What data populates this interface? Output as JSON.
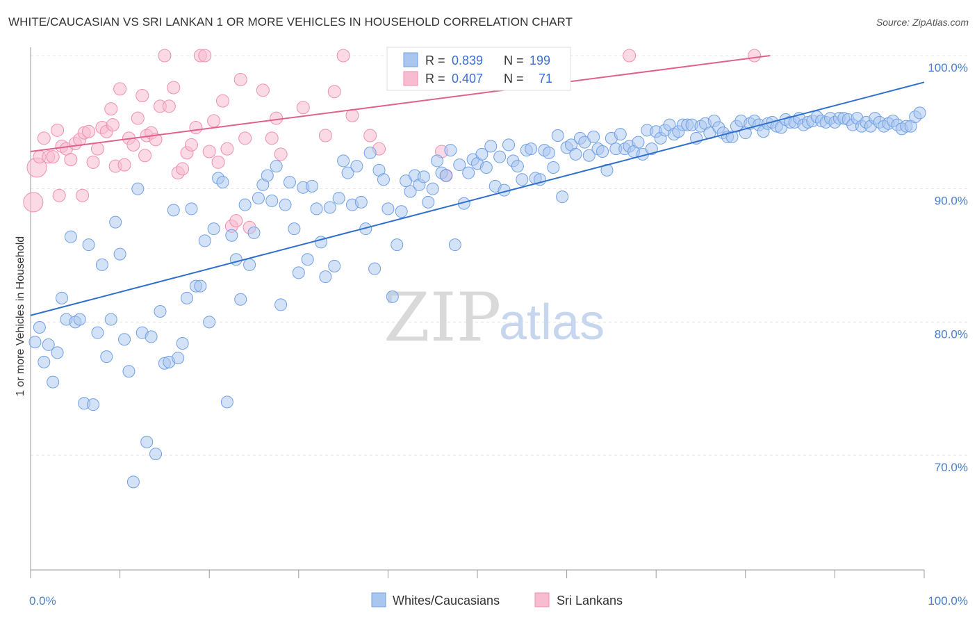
{
  "header": {
    "title": "WHITE/CAUCASIAN VS SRI LANKAN 1 OR MORE VEHICLES IN HOUSEHOLD CORRELATION CHART",
    "source": "Source: ZipAtlas.com"
  },
  "watermark": {
    "zip": "ZIP",
    "atlas": "atlas"
  },
  "legend": {
    "rows": [
      {
        "r_label": "R =",
        "r_value": "0.839",
        "n_label": "N =",
        "n_value": "199",
        "color": "#6fa0e6"
      },
      {
        "r_label": "R =",
        "r_value": "0.407",
        "n_label": "N =",
        "n_value": "71",
        "color": "#f08fb0"
      }
    ]
  },
  "bottom_legend": [
    {
      "label": "Whites/Caucasians",
      "color": "#6fa0e6"
    },
    {
      "label": "Sri Lankans",
      "color": "#f08fb0"
    }
  ],
  "chart_data": {
    "type": "scatter",
    "title": "WHITE/CAUCASIAN VS SRI LANKAN 1 OR MORE VEHICLES IN HOUSEHOLD CORRELATION CHART",
    "xlabel": "",
    "ylabel": "1 or more Vehicles in Household",
    "xlim": [
      0,
      100
    ],
    "ylim": [
      60,
      101
    ],
    "x_tick_labels": [
      "0.0%",
      "100.0%"
    ],
    "y_ticks": [
      70,
      80,
      90,
      100
    ],
    "y_tick_labels": [
      "70.0%",
      "80.0%",
      "90.0%",
      "100.0%"
    ],
    "grid": true,
    "legend_position": "top-center",
    "colors": {
      "blue_fill": "#a9c6ef",
      "blue_stroke": "#6fa0e6",
      "blue_line": "#2f6fcc",
      "pink_fill": "#f7bcd0",
      "pink_stroke": "#f08fb0",
      "pink_line": "#e0608e"
    },
    "series": [
      {
        "name": "Whites/Caucasians",
        "trend": {
          "x": [
            0,
            100
          ],
          "y": [
            80.5,
            98.0
          ]
        },
        "points": [
          [
            0.5,
            78.5
          ],
          [
            1,
            79.6
          ],
          [
            1.5,
            77
          ],
          [
            2,
            78.3
          ],
          [
            2.5,
            75.5
          ],
          [
            3,
            77.7
          ],
          [
            3.5,
            81.8
          ],
          [
            4,
            80.2
          ],
          [
            4.5,
            86.4
          ],
          [
            5,
            80
          ],
          [
            5.5,
            80.2
          ],
          [
            6,
            73.9
          ],
          [
            6.5,
            85.8
          ],
          [
            7,
            73.8
          ],
          [
            7.5,
            79.2
          ],
          [
            8,
            84.3
          ],
          [
            8.5,
            77.4
          ],
          [
            9,
            80.2
          ],
          [
            9.5,
            87.5
          ],
          [
            10,
            85.1
          ],
          [
            10.5,
            78.7
          ],
          [
            11,
            76.3
          ],
          [
            11.5,
            68
          ],
          [
            12,
            90
          ],
          [
            12.5,
            79.2
          ],
          [
            13,
            71
          ],
          [
            13.5,
            78.9
          ],
          [
            14,
            70.1
          ],
          [
            14.5,
            80.8
          ],
          [
            15,
            76.9
          ],
          [
            15.5,
            77
          ],
          [
            16,
            88.4
          ],
          [
            16.5,
            77.3
          ],
          [
            17,
            78.4
          ],
          [
            17.5,
            81.8
          ],
          [
            18,
            88.5
          ],
          [
            18.5,
            82.7
          ],
          [
            19,
            82.7
          ],
          [
            19.5,
            86.1
          ],
          [
            20,
            80
          ],
          [
            20.5,
            87
          ],
          [
            21,
            90.8
          ],
          [
            21.5,
            90.5
          ],
          [
            22,
            74
          ],
          [
            22.5,
            86.5
          ],
          [
            23,
            84.7
          ],
          [
            23.5,
            81.7
          ],
          [
            24,
            88.8
          ],
          [
            24.5,
            84.3
          ],
          [
            25,
            86.7
          ],
          [
            25.5,
            89.3
          ],
          [
            26,
            90.3
          ],
          [
            26.5,
            91
          ],
          [
            27,
            89.1
          ],
          [
            27.5,
            91.7
          ],
          [
            28,
            81.3
          ],
          [
            28.5,
            88.8
          ],
          [
            29,
            90.5
          ],
          [
            29.5,
            87
          ],
          [
            30,
            83.7
          ],
          [
            30.5,
            90.1
          ],
          [
            31,
            84.7
          ],
          [
            31.5,
            90.2
          ],
          [
            32,
            88.5
          ],
          [
            32.5,
            86
          ],
          [
            33,
            83.4
          ],
          [
            33.5,
            88.6
          ],
          [
            34,
            84.2
          ],
          [
            34.5,
            89.3
          ],
          [
            35,
            92.1
          ],
          [
            35.5,
            91.2
          ],
          [
            36,
            88.8
          ],
          [
            36.5,
            91.7
          ],
          [
            37,
            89
          ],
          [
            37.5,
            87
          ],
          [
            38,
            92.7
          ],
          [
            38.5,
            84
          ],
          [
            39,
            91.4
          ],
          [
            39.5,
            90.7
          ],
          [
            40,
            88.5
          ],
          [
            40.5,
            81.9
          ],
          [
            41,
            85.8
          ],
          [
            41.5,
            88.3
          ],
          [
            42,
            90.6
          ],
          [
            42.5,
            89.8
          ],
          [
            43,
            91
          ],
          [
            43.5,
            90.3
          ],
          [
            44,
            90.9
          ],
          [
            44.5,
            89
          ],
          [
            45,
            90
          ],
          [
            45.5,
            92.1
          ],
          [
            46,
            91.2
          ],
          [
            46.5,
            91
          ],
          [
            47,
            92.9
          ],
          [
            47.5,
            85.8
          ],
          [
            48,
            91.8
          ],
          [
            48.5,
            88.9
          ],
          [
            49,
            91.2
          ],
          [
            49.5,
            92.2
          ],
          [
            50,
            91.9
          ],
          [
            50.5,
            92.6
          ],
          [
            51,
            91.6
          ],
          [
            51.5,
            93.2
          ],
          [
            52,
            90.2
          ],
          [
            52.5,
            92.4
          ],
          [
            53,
            89.9
          ],
          [
            53.5,
            93.3
          ],
          [
            54,
            92.1
          ],
          [
            54.5,
            91.7
          ],
          [
            55,
            90.7
          ],
          [
            55.5,
            92.9
          ],
          [
            56,
            93
          ],
          [
            56.5,
            90.8
          ],
          [
            57,
            90.7
          ],
          [
            57.5,
            92.9
          ],
          [
            58,
            92.7
          ],
          [
            58.5,
            91.6
          ],
          [
            59,
            94
          ],
          [
            59.5,
            89.4
          ],
          [
            60,
            93.1
          ],
          [
            60.5,
            93.3
          ],
          [
            61,
            92.6
          ],
          [
            61.5,
            93.8
          ],
          [
            62,
            93.5
          ],
          [
            62.5,
            92.5
          ],
          [
            63,
            93.9
          ],
          [
            63.5,
            93.0
          ],
          [
            64,
            92.8
          ],
          [
            64.5,
            91.4
          ],
          [
            65,
            93.8
          ],
          [
            65.5,
            93
          ],
          [
            66,
            94.1
          ],
          [
            66.5,
            93
          ],
          [
            67,
            93.2
          ],
          [
            67.5,
            92.8
          ],
          [
            68,
            93.5
          ],
          [
            68.5,
            92.6
          ],
          [
            69,
            94.4
          ],
          [
            69.5,
            93
          ],
          [
            70,
            94.3
          ],
          [
            70.5,
            93.8
          ],
          [
            71,
            94.4
          ],
          [
            71.5,
            94.8
          ],
          [
            72,
            94.1
          ],
          [
            72.5,
            94.3
          ],
          [
            73,
            94.8
          ],
          [
            73.5,
            94.8
          ],
          [
            74,
            94.8
          ],
          [
            74.5,
            93.8
          ],
          [
            75,
            94.7
          ],
          [
            75.5,
            94.9
          ],
          [
            76,
            94.2
          ],
          [
            76.5,
            95.1
          ],
          [
            77,
            94.6
          ],
          [
            77.5,
            94.2
          ],
          [
            78,
            93.9
          ],
          [
            78.5,
            93.9
          ],
          [
            79,
            94.7
          ],
          [
            79.5,
            95.1
          ],
          [
            80,
            94.2
          ],
          [
            80.5,
            94.9
          ],
          [
            81,
            95.1
          ],
          [
            81.5,
            94.8
          ],
          [
            82,
            94.3
          ],
          [
            82.5,
            94.9
          ],
          [
            83,
            95
          ],
          [
            83.5,
            94.7
          ],
          [
            84,
            94.6
          ],
          [
            84.5,
            95.2
          ],
          [
            85,
            95
          ],
          [
            85.5,
            95
          ],
          [
            86,
            95.3
          ],
          [
            86.5,
            94.8
          ],
          [
            87,
            95
          ],
          [
            87.5,
            95.1
          ],
          [
            88,
            95.4
          ],
          [
            88.5,
            95.1
          ],
          [
            89,
            95.0
          ],
          [
            89.5,
            95.3
          ],
          [
            90,
            95
          ],
          [
            90.5,
            95.3
          ],
          [
            91,
            95.3
          ],
          [
            91.5,
            95.2
          ],
          [
            92,
            94.8
          ],
          [
            92.5,
            95.3
          ],
          [
            93,
            94.7
          ],
          [
            93.5,
            95.0
          ],
          [
            94,
            94.7
          ],
          [
            94.5,
            95.3
          ],
          [
            95,
            95
          ],
          [
            95.5,
            94.7
          ],
          [
            96,
            94.9
          ],
          [
            96.5,
            95.1
          ],
          [
            97,
            94.8
          ],
          [
            97.5,
            94.5
          ],
          [
            98,
            94.7
          ],
          [
            98.5,
            94.7
          ],
          [
            99,
            95.4
          ],
          [
            99.5,
            95.7
          ]
        ]
      },
      {
        "name": "Sri Lankans",
        "trend": {
          "x": [
            0,
            100
          ],
          "y": [
            92.8,
            101.5
          ]
        },
        "points": [
          [
            0.3,
            89
          ],
          [
            0.7,
            91.6
          ],
          [
            1,
            92.4
          ],
          [
            1.5,
            93.8
          ],
          [
            2,
            92.4
          ],
          [
            2.5,
            92.4
          ],
          [
            3,
            94.4
          ],
          [
            3.5,
            93.2
          ],
          [
            4,
            93
          ],
          [
            4.5,
            92.2
          ],
          [
            5,
            93.4
          ],
          [
            5.5,
            93.7
          ],
          [
            6,
            94.2
          ],
          [
            6.5,
            94.3
          ],
          [
            7,
            92
          ],
          [
            7.5,
            93
          ],
          [
            8,
            94.6
          ],
          [
            8.5,
            94.3
          ],
          [
            9,
            96
          ],
          [
            9.5,
            91.7
          ],
          [
            10,
            97.5
          ],
          [
            10.5,
            91.8
          ],
          [
            11,
            93.8
          ],
          [
            11.5,
            93.3
          ],
          [
            12,
            95.3
          ],
          [
            12.5,
            97
          ],
          [
            13,
            94
          ],
          [
            13.5,
            94.2
          ],
          [
            14,
            93.7
          ],
          [
            14.5,
            96.2
          ],
          [
            15,
            100
          ],
          [
            15.5,
            96.2
          ],
          [
            16,
            97.6
          ],
          [
            16.5,
            91.2
          ],
          [
            17,
            91.5
          ],
          [
            17.5,
            92.7
          ],
          [
            18,
            93.3
          ],
          [
            18.5,
            94.6
          ],
          [
            19,
            100
          ],
          [
            19.5,
            100
          ],
          [
            20,
            92.8
          ],
          [
            20.5,
            95.1
          ],
          [
            21,
            92
          ],
          [
            21.5,
            96.6
          ],
          [
            22,
            93
          ],
          [
            22.5,
            87.2
          ],
          [
            23,
            87.6
          ],
          [
            23.5,
            98.2
          ],
          [
            24,
            93.8
          ],
          [
            24.5,
            87.1
          ],
          [
            26,
            97.4
          ],
          [
            27,
            93.8
          ],
          [
            27.5,
            95.3
          ],
          [
            28,
            92.6
          ],
          [
            30.5,
            96.1
          ],
          [
            33,
            94
          ],
          [
            34,
            97.3
          ],
          [
            35,
            100
          ],
          [
            36,
            95.5
          ],
          [
            38,
            94
          ],
          [
            39,
            93
          ],
          [
            41,
            100
          ],
          [
            46,
            92.8
          ],
          [
            46.5,
            91
          ],
          [
            56,
            100
          ],
          [
            67,
            100
          ],
          [
            81,
            100
          ],
          [
            5.8,
            89.5
          ],
          [
            9.2,
            94.8
          ],
          [
            12.8,
            92.5
          ],
          [
            3.2,
            89.5
          ]
        ]
      }
    ]
  }
}
